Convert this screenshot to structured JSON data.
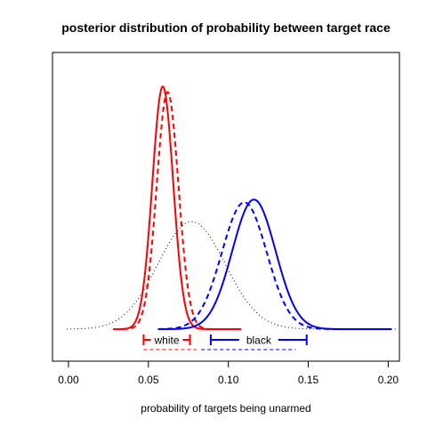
{
  "chart_data": {
    "type": "line",
    "title": "posterior distribution of probability between target race",
    "xlabel": "probability of targets being unarmed",
    "ylabel": "",
    "xlim": [
      -0.01,
      0.207
    ],
    "ylim": [
      0,
      1.0
    ],
    "x_ticks": [
      "0.00",
      "0.05",
      "0.10",
      "0.15",
      "0.20"
    ],
    "x_tick_values": [
      0.0,
      0.05,
      0.1,
      0.15,
      0.2
    ],
    "grid": false,
    "series": [
      {
        "color": "#ff0000",
        "style": "solid",
        "mean": 0.059,
        "sd": 0.0065,
        "peak": 0.88,
        "x_range": [
          0.028,
          0.108
        ]
      },
      {
        "color": "#ff0000",
        "style": "dashed",
        "mean": 0.062,
        "sd": 0.0068,
        "peak": 0.86,
        "x_range": [
          0.028,
          0.108
        ]
      },
      {
        "color": "#0000ff",
        "style": "solid",
        "mean": 0.116,
        "sd": 0.0135,
        "peak": 0.47,
        "x_range": [
          0.056,
          0.202
        ]
      },
      {
        "color": "#0000ff",
        "style": "dashed",
        "mean": 0.11,
        "sd": 0.014,
        "peak": 0.46,
        "x_range": [
          0.056,
          0.202
        ]
      },
      {
        "color": "#000000",
        "style": "dotted",
        "mean": 0.077,
        "sd": 0.021,
        "peak": 0.39,
        "x_range": [
          -0.001,
          0.206
        ]
      }
    ],
    "intervals": [
      {
        "label": "white",
        "color": "#ff0000",
        "lower": 0.047,
        "upper": 0.076,
        "dashed_lower": 0.047,
        "dashed_upper": 0.08
      },
      {
        "label": "black",
        "color": "#0000ff",
        "lower": 0.089,
        "upper": 0.149,
        "dashed_lower": 0.083,
        "dashed_upper": 0.142
      }
    ]
  }
}
